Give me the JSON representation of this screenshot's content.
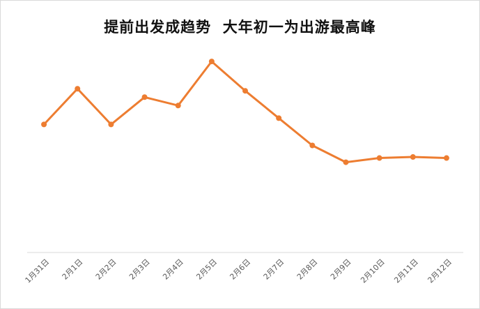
{
  "chart_data": {
    "type": "line",
    "title": "提前出发成趋势  大年初一为出游最高峰",
    "categories": [
      "1月31日",
      "2月1日",
      "2月2日",
      "2月3日",
      "2月4日",
      "2月5日",
      "2月6日",
      "2月7日",
      "2月8日",
      "2月9日",
      "2月10日",
      "2月11日",
      "2月12日"
    ],
    "values": [
      61,
      78,
      61,
      74,
      70,
      91,
      77,
      64,
      51,
      43,
      45,
      45.5,
      45
    ],
    "ylim": [
      0,
      100
    ],
    "grid": false,
    "legend": "none",
    "colors": {
      "line": "#ED7D31",
      "axis": "#D9D9D9",
      "tick_text": "#595959"
    }
  }
}
